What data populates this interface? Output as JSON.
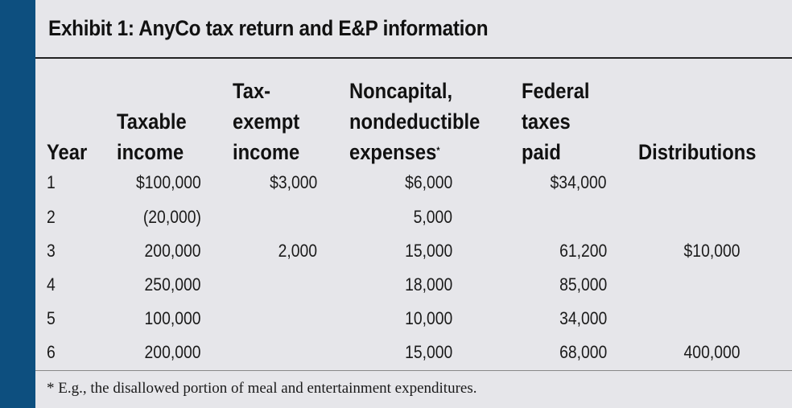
{
  "title": "Exhibit 1: AnyCo tax return and E&P information",
  "headers": {
    "year": [
      "Year"
    ],
    "taxable_income": [
      "Taxable",
      "income"
    ],
    "tax_exempt_income": [
      "Tax-",
      "exempt",
      "income"
    ],
    "noncapital": [
      "Noncapital,",
      "nondeductible",
      "expenses"
    ],
    "noncapital_mark": "*",
    "federal_taxes": [
      "Federal",
      "taxes",
      "paid"
    ],
    "distributions": [
      "Distributions"
    ]
  },
  "rows": [
    {
      "year": "1",
      "taxable_income": "$100,000",
      "tax_exempt_income": "$3,000",
      "noncapital": "$6,000",
      "federal_taxes": "$34,000",
      "distributions": ""
    },
    {
      "year": "2",
      "taxable_income": "(20,000)",
      "tax_exempt_income": "",
      "noncapital": "5,000",
      "federal_taxes": "",
      "distributions": ""
    },
    {
      "year": "3",
      "taxable_income": "200,000",
      "tax_exempt_income": "2,000",
      "noncapital": "15,000",
      "federal_taxes": "61,200",
      "distributions": "$10,000"
    },
    {
      "year": "4",
      "taxable_income": "250,000",
      "tax_exempt_income": "",
      "noncapital": "18,000",
      "federal_taxes": "85,000",
      "distributions": ""
    },
    {
      "year": "5",
      "taxable_income": "100,000",
      "tax_exempt_income": "",
      "noncapital": "10,000",
      "federal_taxes": "34,000",
      "distributions": ""
    },
    {
      "year": "6",
      "taxable_income": "200,000",
      "tax_exempt_income": "",
      "noncapital": "15,000",
      "federal_taxes": "68,000",
      "distributions": "400,000"
    }
  ],
  "footnote": "* E.g., the disallowed portion of meal and entertainment expenditures.",
  "colors": {
    "side_bar": "#0d4f7f",
    "panel": "#e6e6ea"
  }
}
